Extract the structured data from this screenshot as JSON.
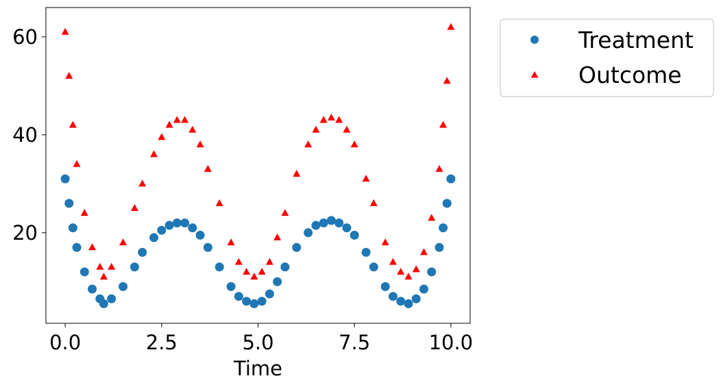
{
  "chart_data": {
    "type": "scatter",
    "title": "",
    "xlabel": "Time",
    "ylabel": "",
    "xlim": [
      -0.5,
      10.5
    ],
    "ylim": [
      1.5,
      66
    ],
    "xticks": [
      0.0,
      2.5,
      5.0,
      7.5,
      10.0
    ],
    "xtick_labels": [
      "0.0",
      "2.5",
      "5.0",
      "7.5",
      "10.0"
    ],
    "yticks": [
      20,
      40,
      60
    ],
    "ytick_labels": [
      "20",
      "40",
      "60"
    ],
    "grid": false,
    "legend_position": "outside-upper-right",
    "series": [
      {
        "name": "Treatment",
        "marker": "circle",
        "color": "#1f77b4",
        "x": [
          0.0,
          0.1,
          0.2,
          0.3,
          0.5,
          0.7,
          0.9,
          1.0,
          1.2,
          1.5,
          1.8,
          2.0,
          2.3,
          2.5,
          2.7,
          2.9,
          3.1,
          3.3,
          3.5,
          3.7,
          4.0,
          4.3,
          4.5,
          4.7,
          4.9,
          5.1,
          5.3,
          5.5,
          5.7,
          6.0,
          6.3,
          6.5,
          6.7,
          6.9,
          7.1,
          7.3,
          7.5,
          7.8,
          8.0,
          8.3,
          8.5,
          8.7,
          8.9,
          9.1,
          9.3,
          9.5,
          9.7,
          9.8,
          9.9,
          10.0
        ],
        "y": [
          31,
          26,
          21,
          17,
          12,
          8.5,
          6.5,
          5.5,
          6.5,
          9,
          13,
          16,
          19,
          20.5,
          21.5,
          22,
          22,
          21,
          19.5,
          17,
          13,
          9,
          7,
          6,
          5.5,
          6,
          7.5,
          10,
          13,
          17,
          20,
          21.5,
          22,
          22.5,
          22,
          21,
          19.5,
          16,
          13,
          9,
          7,
          6,
          5.5,
          6.5,
          8.5,
          12,
          17,
          21,
          26,
          31
        ]
      },
      {
        "name": "Outcome",
        "marker": "triangle",
        "color": "#ff0000",
        "x": [
          0.0,
          0.1,
          0.2,
          0.3,
          0.5,
          0.7,
          0.9,
          1.0,
          1.2,
          1.5,
          1.8,
          2.0,
          2.3,
          2.5,
          2.7,
          2.9,
          3.1,
          3.3,
          3.5,
          3.7,
          4.0,
          4.3,
          4.5,
          4.7,
          4.9,
          5.1,
          5.3,
          5.5,
          5.7,
          6.0,
          6.3,
          6.5,
          6.7,
          6.9,
          7.1,
          7.3,
          7.5,
          7.8,
          8.0,
          8.3,
          8.5,
          8.7,
          8.9,
          9.1,
          9.3,
          9.5,
          9.7,
          9.8,
          9.9,
          10.0
        ],
        "y": [
          61,
          52,
          42,
          34,
          24,
          17,
          13,
          11,
          13,
          18,
          25,
          30,
          36,
          39.5,
          42,
          43,
          43,
          41,
          38,
          33,
          26,
          18,
          14,
          12,
          11,
          12,
          14,
          19,
          24,
          32,
          38,
          41,
          43,
          43.5,
          43,
          41,
          38,
          31,
          26,
          18,
          14,
          12,
          11,
          12.5,
          16,
          23,
          33,
          42,
          51,
          62
        ]
      }
    ]
  },
  "colors": {
    "treatment": "#1f77b4",
    "outcome": "#ff0000",
    "axis": "#000000",
    "legend_border": "#cccccc"
  }
}
